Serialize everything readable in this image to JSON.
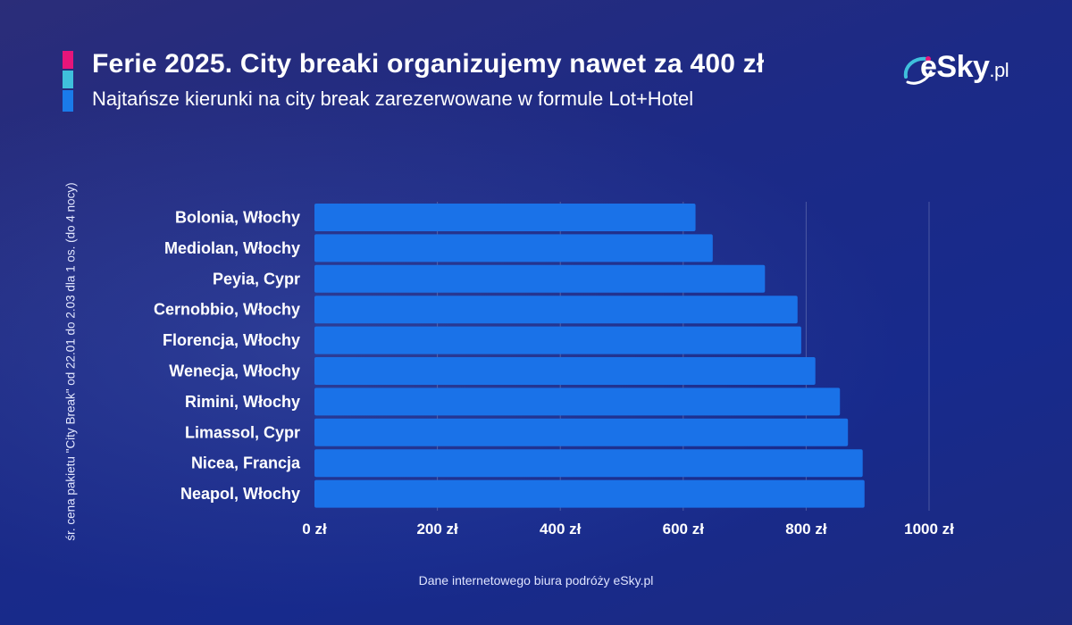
{
  "header": {
    "title": "Ferie 2025. City breaki organizujemy nawet za 400 zł",
    "subtitle": "Najtańsze kierunki na city break zarezerwowane w formule Lot+Hotel"
  },
  "logo": {
    "text": "eSky",
    "tld": ".pl"
  },
  "footer": {
    "source": "Dane internetowego biura podróży eSky.pl"
  },
  "colors": {
    "bar": "#1a72e8",
    "accent_pink": "#e6157a",
    "accent_cyan": "#3fc0dc",
    "accent_blue": "#1a7bea"
  },
  "chart_data": {
    "type": "bar",
    "orientation": "horizontal",
    "title": "Ferie 2025. City breaki organizujemy nawet za 400 zł",
    "xlabel": "",
    "ylabel": "śr. cena pakietu \"City Break\" od 22.01 do 2.03 dla 1 os.  (do 4 nocy)",
    "categories": [
      "Bolonia, Włochy",
      "Mediolan, Włochy",
      "Peyia, Cypr",
      "Cernobbio, Włochy",
      "Florencja, Włochy",
      "Wenecja, Włochy",
      "Rimini, Włochy",
      "Limassol, Cypr",
      "Nicea, Francja",
      "Neapol, Włochy"
    ],
    "values": [
      620,
      648,
      733,
      786,
      792,
      815,
      855,
      868,
      892,
      895
    ],
    "xlim": [
      0,
      1000
    ],
    "ticks": [
      0,
      200,
      400,
      600,
      800,
      1000
    ],
    "tick_labels": [
      "0 zł",
      "200 zł",
      "400 zł",
      "600 zł",
      "800 zł",
      "1000 zł"
    ],
    "grid": true
  }
}
